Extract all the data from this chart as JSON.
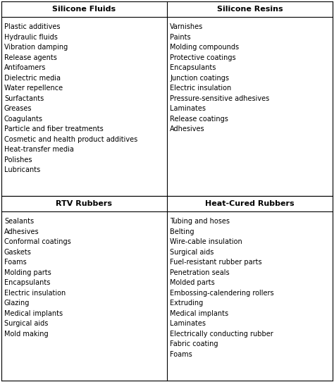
{
  "col1_header": "Silicone Fluids",
  "col2_header": "Silicone Resins",
  "col3_header": "RTV Rubbers",
  "col4_header": "Heat-Cured Rubbers",
  "col1_items": [
    "Plastic additives",
    "Hydraulic fluids",
    "Vibration damping",
    "Release agents",
    "Antifoamers",
    "Dielectric media",
    "Water repellence",
    "Surfactants",
    "Greases",
    "Coagulants",
    "Particle and fiber treatments",
    "Cosmetic and health product additives",
    "Heat-transfer media",
    "Polishes",
    "Lubricants"
  ],
  "col2_items": [
    "Varnishes",
    "Paints",
    "Molding compounds",
    "Protective coatings",
    "Encapsulants",
    "Junction coatings",
    "Electric insulation",
    "Pressure-sensitive adhesives",
    "Laminates",
    "Release coatings",
    "Adhesives"
  ],
  "col3_items": [
    "Sealants",
    "Adhesives",
    "Conformal coatings",
    "Gaskets",
    "Foams",
    "Molding parts",
    "Encapsulants",
    "Electric insulation",
    "Glazing",
    "Medical implants",
    "Surgical aids",
    "Mold making"
  ],
  "col4_items": [
    "Tubing and hoses",
    "Belting",
    "Wire-cable insulation",
    "Surgical aids",
    "Fuel-resistant rubber parts",
    "Penetration seals",
    "Molded parts",
    "Embossing-calendering rollers",
    "Extruding",
    "Medical implants",
    "Laminates",
    "Electrically conducting rubber",
    "Fabric coating",
    "Foams"
  ],
  "bg_color": "#ffffff",
  "line_color": "#000000",
  "text_color": "#000000",
  "header_fontsize": 8.0,
  "item_fontsize": 7.0,
  "fig_width": 4.74,
  "fig_height": 5.42,
  "dpi": 100
}
